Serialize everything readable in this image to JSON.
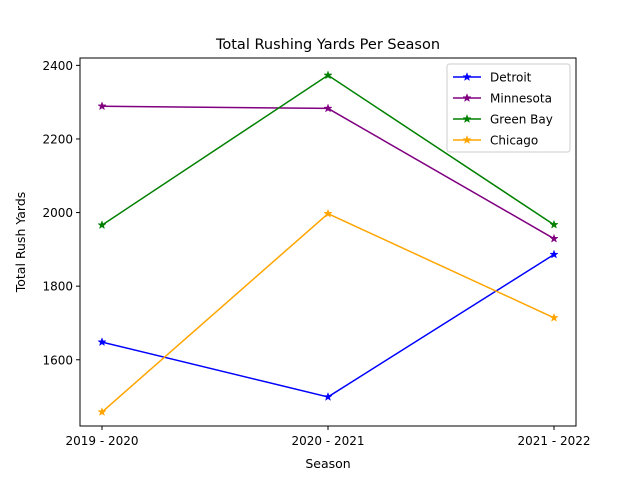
{
  "chart_data": {
    "type": "line",
    "title": "Total Rushing Yards Per Season",
    "xlabel": "Season",
    "ylabel": "Total Rush Yards",
    "categories": [
      "2019 - 2020",
      "2020 - 2021",
      "2021 - 2022"
    ],
    "ylim": [
      1420,
      2420
    ],
    "yticks": [
      1600,
      1800,
      2000,
      2200,
      2400
    ],
    "grid": false,
    "legend_position": "top-right",
    "marker": "star",
    "series": [
      {
        "name": "Detroit",
        "color": "#0000ff",
        "values": [
          1648,
          1499,
          1886
        ]
      },
      {
        "name": "Minnesota",
        "color": "#800080",
        "values": [
          2289,
          2283,
          1929
        ]
      },
      {
        "name": "Green Bay",
        "color": "#008000",
        "values": [
          1966,
          2373,
          1967
        ]
      },
      {
        "name": "Chicago",
        "color": "#ffa500",
        "values": [
          1458,
          1997,
          1714
        ]
      }
    ]
  }
}
